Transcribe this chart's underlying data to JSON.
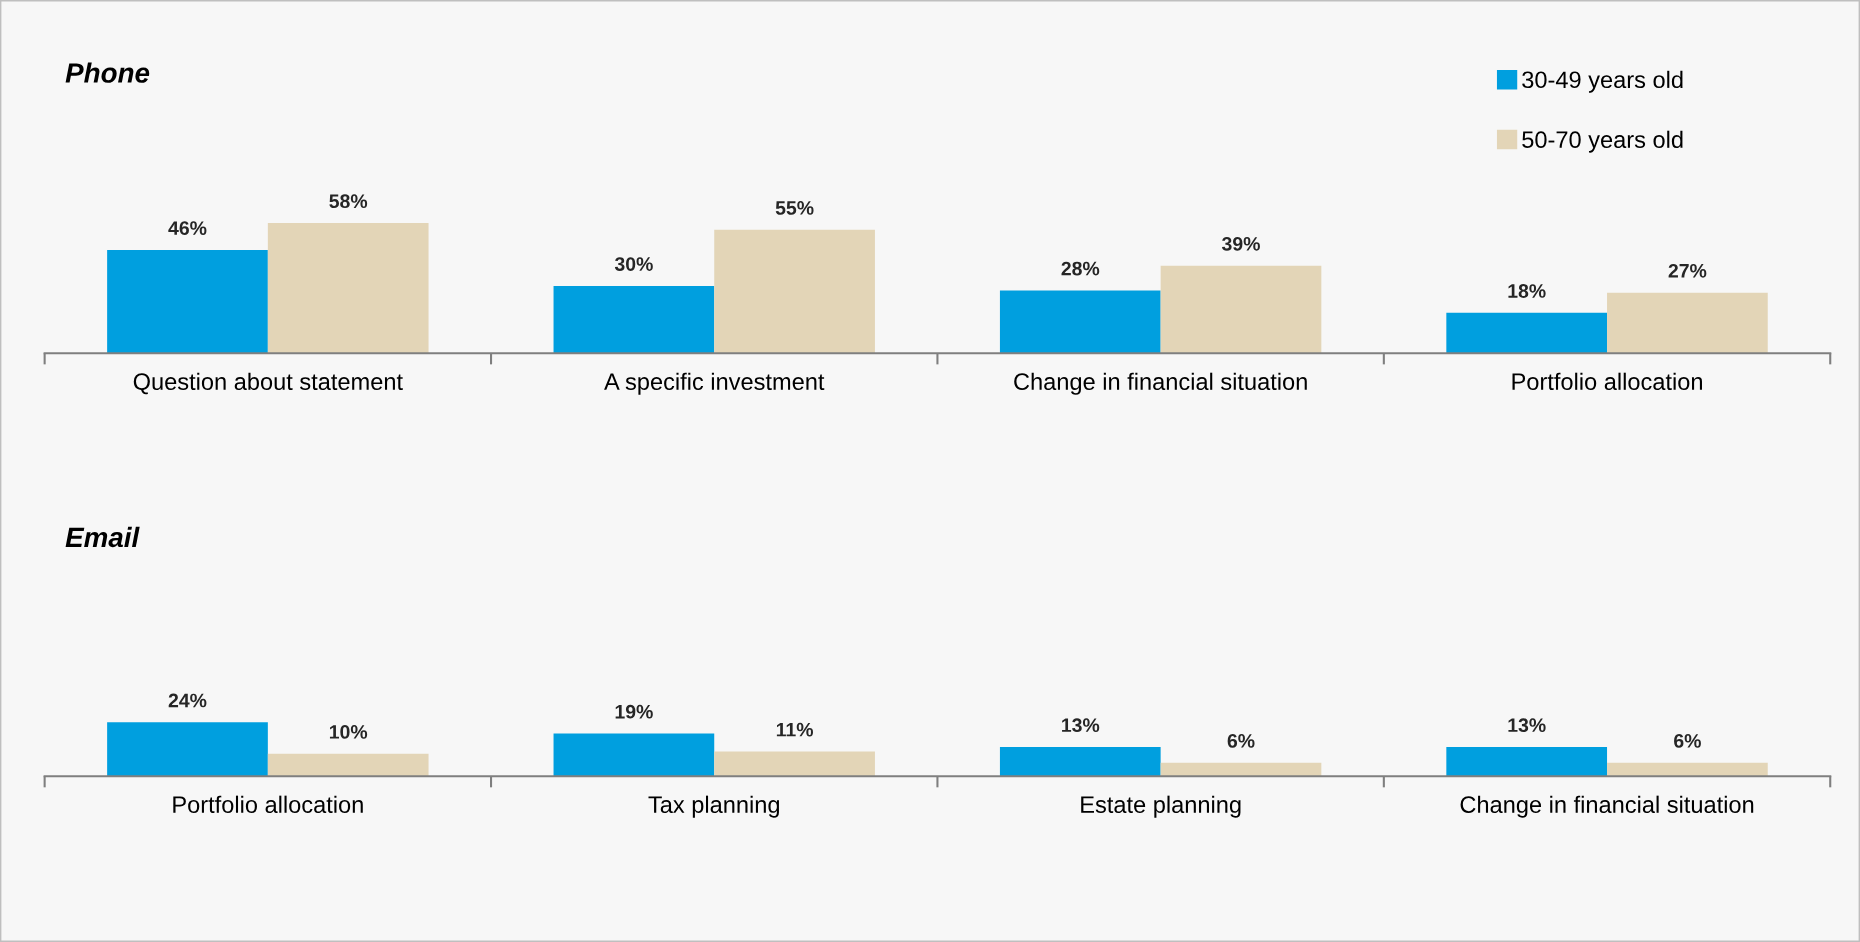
{
  "chart_data": [
    {
      "type": "bar",
      "title": "Phone",
      "categories": [
        "Question about statement",
        "A specific investment",
        "Change in financial situation",
        "Portfolio allocation"
      ],
      "series": [
        {
          "name": "30-49 years old",
          "color": "#009fdf",
          "values": [
            46,
            30,
            28,
            18
          ],
          "value_labels": [
            "46%",
            "30%",
            "28%",
            "18%"
          ]
        },
        {
          "name": "50-70 years old",
          "color": "#e3d5b7",
          "values": [
            58,
            55,
            39,
            27
          ],
          "value_labels": [
            "58%",
            "55%",
            "39%",
            "27%"
          ]
        }
      ],
      "tick_labels": "x",
      "legend": "top right"
    },
    {
      "type": "bar",
      "title": "Email",
      "categories": [
        "Portfolio allocation",
        "Tax planning",
        "Estate planning",
        "Change in financial situation"
      ],
      "series": [
        {
          "color": "#009fdf",
          "values": [
            24,
            19,
            13,
            13
          ],
          "value_labels": [
            "24%",
            "19%",
            "13%",
            "13%"
          ]
        },
        {
          "color": "#e3d5b7",
          "values": [
            10,
            11,
            6,
            6
          ],
          "value_labels": [
            "10%",
            "11%",
            "6%",
            "6%"
          ]
        }
      ],
      "tick_labels": "x"
    }
  ]
}
